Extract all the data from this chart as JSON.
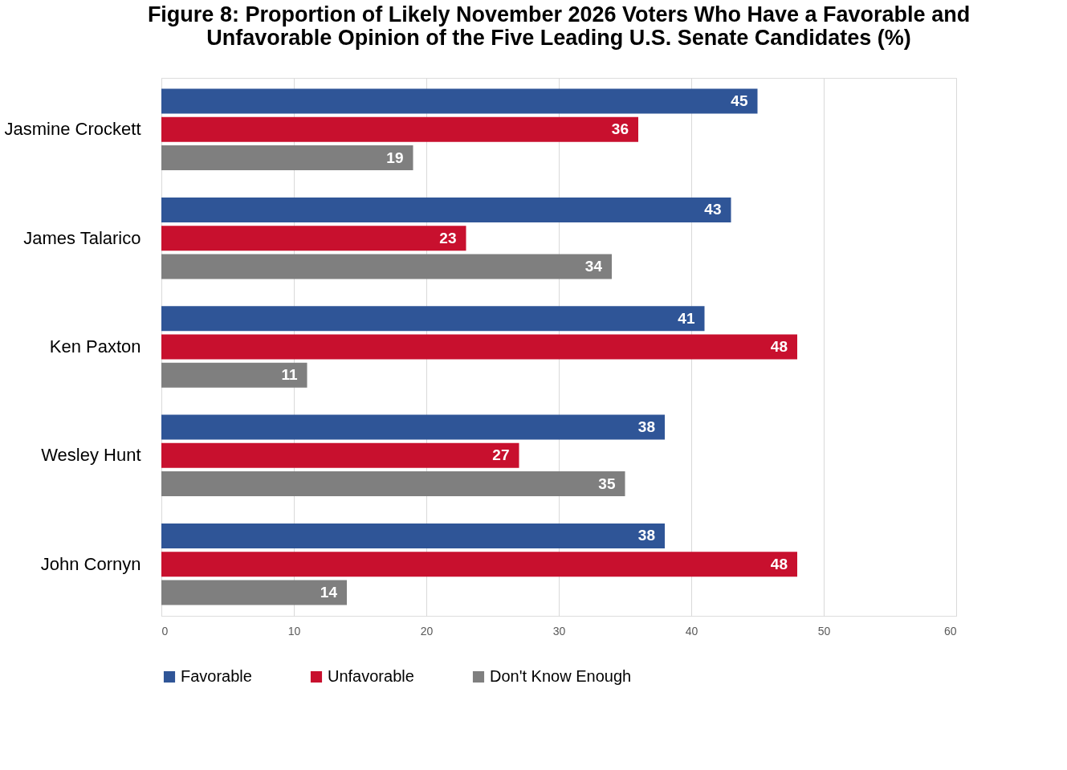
{
  "chart_data": {
    "type": "bar",
    "orientation": "horizontal",
    "title": "Figure 8: Proportion of Likely November 2026 Voters Who Have a Favorable and Unfavorable Opinion of the Five Leading U.S. Senate Candidates (%)",
    "categories": [
      "Jasmine Crockett",
      "James Talarico",
      "Ken Paxton",
      "Wesley Hunt",
      "John Cornyn"
    ],
    "series": [
      {
        "name": "Favorable",
        "color": "#2f5597",
        "values": [
          45,
          43,
          41,
          38,
          38
        ]
      },
      {
        "name": "Unfavorable",
        "color": "#c8102e",
        "values": [
          36,
          23,
          48,
          27,
          48
        ]
      },
      {
        "name": "Don't Know Enough",
        "color": "#7f7f7f",
        "values": [
          19,
          34,
          11,
          35,
          14
        ]
      }
    ],
    "xlim": [
      0,
      60
    ],
    "xticks": [
      0,
      10,
      20,
      30,
      40,
      50,
      60
    ],
    "grid": "x",
    "legend": "bottom",
    "data_labels": true
  }
}
